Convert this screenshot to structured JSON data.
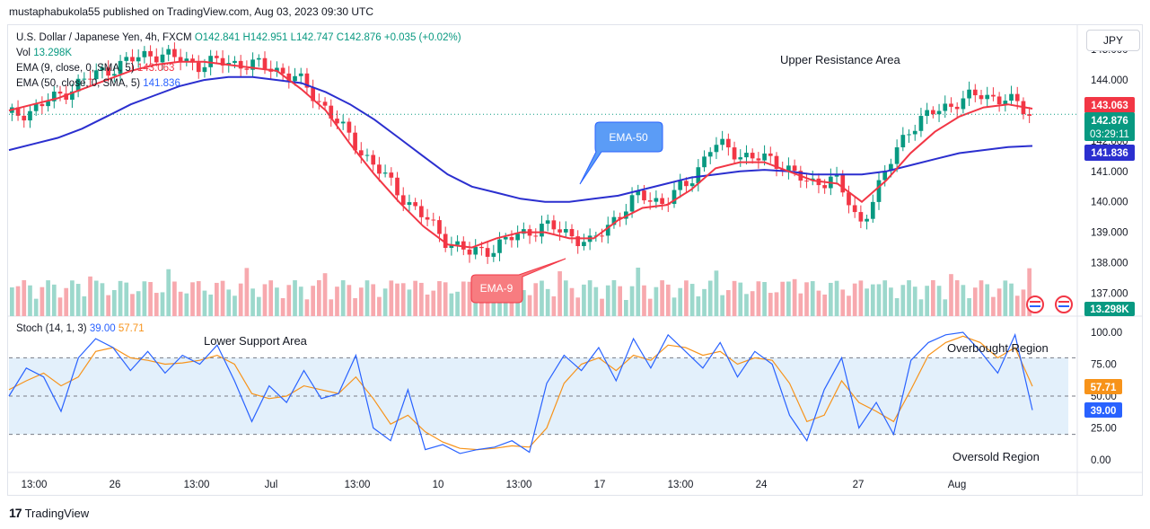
{
  "header": {
    "publish_line": "mustaphabukola55 published on TradingView.com, Aug 03, 2023 09:30 UTC"
  },
  "legend": {
    "symbol": "U.S. Dollar / Japanese Yen, 4h, FXCM",
    "open": "O142.841",
    "high": "H142.951",
    "low": "L142.747",
    "close": "C142.876",
    "change": "+0.035 (+0.02%)",
    "vol_label": "Vol",
    "vol_value": "13.298K",
    "ema9_label": "EMA (9, close, 0, SMA, 5)",
    "ema9_value": "143.063",
    "ema50_label": "EMA (50, close, 0, SMA, 5)",
    "ema50_value": "141.836",
    "stoch_label": "Stoch (14, 1, 3)",
    "stoch_k": "39.00",
    "stoch_d": "57.71"
  },
  "currency_button": "JPY",
  "annotations": {
    "upper_resistance": "Upper Resistance Area",
    "lower_support": "Lower Support Area",
    "overbought": "Overbought Region",
    "oversold": "Oversold Region",
    "ema50_callout": "EMA-50",
    "ema9_callout": "EMA-9"
  },
  "price_badges": {
    "ema9": "143.063",
    "last": "142.876",
    "countdown": "03:29:11",
    "ema50": "141.836",
    "volume": "13.298K",
    "stoch_d": "57.71",
    "stoch_k": "39.00"
  },
  "footer": {
    "brand": "TradingView"
  },
  "colors": {
    "up": "#089981",
    "down": "#f23645",
    "ema9": "#f23645",
    "ema50": "#2b2fcf",
    "stoch_k": "#2962ff",
    "stoch_d": "#f7931a",
    "band": "#e3f0fb"
  },
  "chart_data": {
    "type": "candlestick",
    "title": "U.S. Dollar / Japanese Yen, 4h, FXCM",
    "x_ticks": [
      "13:00",
      "26",
      "13:00",
      "Jul",
      "13:00",
      "10",
      "13:00",
      "17",
      "13:00",
      "24",
      "27",
      "Aug"
    ],
    "y_ticks": [
      "137.000",
      "138.000",
      "139.000",
      "140.000",
      "141.000",
      "142.000",
      "143.000",
      "144.000",
      "145.000"
    ],
    "ylim": [
      136.6,
      145.3
    ],
    "close_path": [
      142.8,
      143.0,
      143.4,
      143.9,
      144.3,
      144.6,
      144.9,
      144.7,
      144.5,
      144.6,
      144.5,
      144.4,
      144.0,
      143.2,
      142.2,
      141.3,
      140.4,
      139.6,
      138.8,
      138.3,
      138.5,
      138.9,
      139.2,
      139.0,
      138.6,
      139.5,
      140.2,
      140.0,
      140.6,
      141.9,
      141.6,
      141.4,
      141.2,
      140.5,
      140.9,
      139.2,
      140.8,
      142.4,
      142.9,
      143.3,
      143.5,
      143.4,
      142.9
    ],
    "ema9": [
      143.0,
      143.2,
      143.4,
      143.7,
      144.0,
      144.3,
      144.5,
      144.6,
      144.6,
      144.5,
      144.4,
      144.3,
      143.7,
      143.0,
      141.9,
      140.9,
      140.0,
      139.2,
      138.6,
      138.5,
      138.8,
      139.0,
      139.0,
      138.8,
      138.8,
      139.4,
      139.8,
      139.9,
      140.4,
      141.1,
      141.3,
      141.3,
      141.0,
      140.7,
      140.6,
      140.0,
      140.7,
      141.6,
      142.3,
      142.8,
      143.1,
      143.2,
      143.06
    ],
    "ema50": [
      141.7,
      141.9,
      142.1,
      142.4,
      142.8,
      143.2,
      143.5,
      143.8,
      144.0,
      144.1,
      144.1,
      144.0,
      143.9,
      143.6,
      143.2,
      142.7,
      142.1,
      141.5,
      140.9,
      140.5,
      140.3,
      140.1,
      140.0,
      140.0,
      140.1,
      140.2,
      140.4,
      140.6,
      140.8,
      140.9,
      141.0,
      141.05,
      141.0,
      140.9,
      140.9,
      140.9,
      141.0,
      141.2,
      141.4,
      141.6,
      141.7,
      141.8,
      141.836
    ],
    "stoch": {
      "ylim": [
        0,
        100
      ],
      "y_ticks": [
        "0.00",
        "25.00",
        "50.00",
        "75.00",
        "100.00"
      ],
      "overbought": 80,
      "oversold": 20,
      "k": [
        50,
        72,
        65,
        38,
        80,
        95,
        88,
        70,
        85,
        68,
        82,
        75,
        90,
        62,
        30,
        58,
        45,
        70,
        48,
        52,
        82,
        25,
        15,
        55,
        8,
        12,
        5,
        8,
        10,
        15,
        6,
        60,
        82,
        70,
        88,
        62,
        95,
        72,
        98,
        85,
        72,
        92,
        65,
        85,
        75,
        35,
        15,
        55,
        80,
        25,
        45,
        20,
        78,
        92,
        98,
        100,
        85,
        68,
        98,
        39
      ],
      "d": [
        55,
        62,
        68,
        58,
        65,
        85,
        88,
        80,
        78,
        75,
        76,
        78,
        82,
        75,
        52,
        48,
        50,
        58,
        55,
        52,
        65,
        48,
        28,
        35,
        22,
        14,
        9,
        8,
        9,
        11,
        10,
        25,
        60,
        75,
        80,
        70,
        82,
        78,
        90,
        88,
        82,
        85,
        75,
        80,
        78,
        60,
        30,
        35,
        62,
        45,
        38,
        30,
        55,
        82,
        92,
        97,
        92,
        80,
        88,
        57.71
      ]
    }
  }
}
